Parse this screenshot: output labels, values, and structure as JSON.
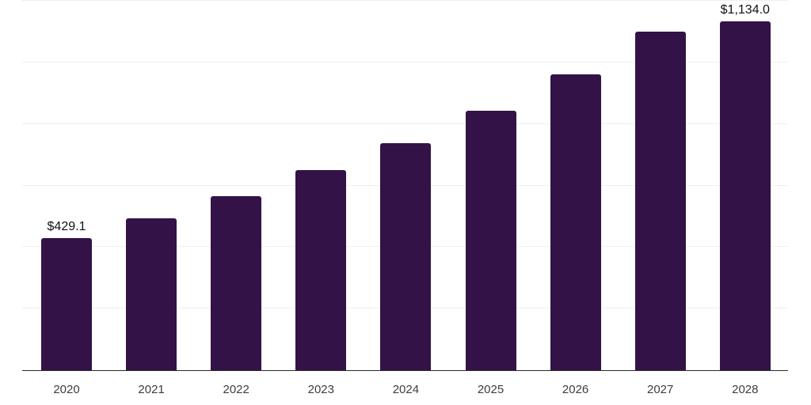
{
  "chart_data": {
    "type": "bar",
    "title": "",
    "xlabel": "",
    "ylabel": "",
    "categories": [
      "2020",
      "2021",
      "2022",
      "2023",
      "2024",
      "2025",
      "2026",
      "2027",
      "2028"
    ],
    "values": [
      429.1,
      493,
      565,
      650,
      739,
      842,
      962,
      1101,
      1134.0
    ],
    "data_labels": [
      {
        "index": 0,
        "text": "$429.1"
      },
      {
        "index": 8,
        "text": "$1,134.0"
      }
    ],
    "ylim": [
      0,
      1203
    ],
    "gridline_step": 200,
    "grid": true,
    "legend": "none",
    "bar_color": "#331347",
    "gridline_color": "#efefef",
    "axis_line_color": "#2b2b2b",
    "tick_label_color": "#3d3d3d",
    "data_label_color": "#111111",
    "background": "#ffffff"
  }
}
